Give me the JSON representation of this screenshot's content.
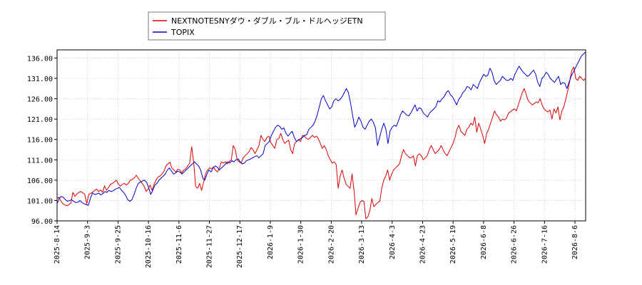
{
  "chart_data": {
    "type": "line",
    "title": "",
    "xlabel": "",
    "ylabel": "",
    "x_ticks": [
      "2025-8-14",
      "2025-9-3",
      "2025-9-25",
      "2025-10-16",
      "2025-11-6",
      "2025-11-27",
      "2025-12-17",
      "2026-1-9",
      "2026-1-30",
      "2026-2-20",
      "2026-3-13",
      "2026-4-3",
      "2026-4-23",
      "2026-5-19",
      "2026-6-8",
      "2026-6-26",
      "2026-7-16",
      "2026-8-6"
    ],
    "y_ticks": [
      "96.00",
      "101.00",
      "106.00",
      "111.00",
      "116.00",
      "121.00",
      "126.00",
      "131.00",
      "136.00"
    ],
    "ylim": [
      96,
      138
    ],
    "grid": true,
    "legend_position": "top-left",
    "series": [
      {
        "name": "NEXTNOTESNYダウ・ダブル・ブル・ドルヘッジETN",
        "color": "#dd0000",
        "values": [
          101.5,
          101.8,
          100.8,
          100.2,
          99.9,
          99.7,
          100.0,
          100.4,
          103.0,
          102.0,
          102.6,
          103.0,
          103.2,
          102.9,
          102.5,
          100.2,
          102.5,
          102.8,
          103.0,
          103.5,
          103.8,
          103.2,
          103.6,
          103.0,
          104.6,
          103.5,
          104.2,
          105.0,
          105.2,
          105.6,
          106.0,
          105.0,
          104.5,
          105.0,
          105.2,
          104.8,
          105.2,
          106.0,
          106.2,
          106.5,
          107.2,
          106.5,
          105.8,
          105.2,
          104.5,
          103.2,
          103.8,
          104.8,
          103.5,
          105.0,
          106.0,
          106.8,
          107.0,
          107.5,
          108.2,
          109.5,
          110.0,
          110.4,
          109.0,
          108.5,
          108.0,
          108.7,
          108.5,
          107.8,
          108.5,
          108.8,
          109.5,
          110.2,
          114.2,
          110.5,
          104.5,
          104.0,
          105.2,
          103.5,
          105.5,
          107.5,
          108.5,
          109.0,
          108.8,
          109.2,
          108.5,
          108.0,
          109.0,
          110.5,
          110.2,
          110.5,
          110.0,
          110.6,
          111.0,
          114.5,
          113.5,
          111.0,
          110.5,
          110.2,
          111.5,
          112.0,
          112.5,
          113.0,
          114.0,
          113.5,
          112.5,
          113.5,
          114.5,
          117.0,
          116.0,
          115.5,
          116.5,
          116.8,
          115.2,
          114.5,
          113.8,
          116.0,
          116.2,
          117.5,
          116.0,
          115.0,
          115.5,
          115.8,
          113.5,
          112.5,
          115.0,
          115.5,
          116.0,
          115.5,
          117.0,
          116.8,
          116.2,
          116.0,
          116.5,
          117.0,
          116.5,
          116.8,
          116.2,
          115.0,
          113.8,
          114.5,
          113.5,
          112.0,
          111.0,
          110.2,
          110.5,
          109.8,
          104.0,
          107.0,
          108.5,
          106.5,
          105.0,
          104.5,
          104.0,
          107.5,
          103.5,
          97.5,
          99.0,
          100.5,
          101.0,
          100.8,
          96.5,
          97.0,
          98.5,
          101.5,
          99.5,
          100.0,
          100.5,
          100.8,
          104.0,
          106.0,
          107.0,
          108.5,
          106.0,
          107.5,
          108.5,
          109.0,
          109.5,
          110.0,
          112.0,
          113.5,
          112.5,
          112.0,
          111.5,
          111.5,
          112.0,
          109.5,
          112.0,
          112.5,
          112.0,
          111.0,
          111.5,
          112.0,
          113.5,
          114.5,
          113.5,
          112.5,
          113.0,
          113.5,
          114.5,
          113.5,
          112.5,
          112.0,
          113.0,
          114.0,
          115.0,
          116.5,
          118.5,
          119.5,
          118.0,
          117.5,
          117.0,
          118.5,
          119.0,
          120.0,
          119.5,
          121.5,
          117.8,
          120.0,
          118.5,
          117.0,
          115.0,
          117.5,
          118.5,
          120.0,
          121.5,
          123.0,
          122.0,
          121.5,
          120.5,
          121.0,
          120.8,
          121.2,
          122.5,
          122.8,
          123.2,
          123.5,
          123.0,
          124.5,
          126.0,
          127.5,
          128.5,
          127.0,
          125.5,
          125.0,
          124.5,
          124.8,
          125.2,
          125.0,
          126.0,
          124.5,
          123.5,
          123.0,
          122.8,
          123.2,
          121.0,
          123.5,
          122.5,
          124.0,
          120.8,
          123.0,
          124.0,
          126.0,
          128.0,
          130.5,
          133.0,
          133.8,
          131.0,
          130.5,
          131.5,
          131.0,
          130.5,
          131.0
        ]
      },
      {
        "name": "TOPIX",
        "color": "#0000cc",
        "values": [
          100.2,
          101.5,
          102.0,
          101.8,
          101.2,
          100.8,
          101.0,
          101.2,
          100.8,
          100.5,
          100.6,
          101.0,
          100.5,
          100.2,
          100.0,
          99.8,
          101.5,
          102.8,
          102.5,
          102.6,
          102.8,
          102.4,
          102.7,
          103.2,
          103.0,
          103.5,
          103.2,
          103.4,
          103.8,
          104.0,
          104.2,
          103.5,
          103.0,
          102.2,
          101.2,
          100.8,
          101.2,
          102.5,
          104.0,
          105.2,
          105.5,
          105.8,
          106.0,
          105.5,
          104.2,
          102.5,
          103.5,
          104.8,
          105.2,
          106.0,
          106.5,
          107.0,
          107.5,
          108.5,
          109.0,
          108.2,
          107.5,
          107.8,
          108.2,
          108.0,
          107.5,
          108.0,
          108.5,
          109.0,
          109.5,
          110.0,
          110.5,
          110.0,
          109.5,
          108.5,
          106.5,
          106.0,
          107.5,
          108.5,
          108.0,
          109.0,
          109.5,
          109.2,
          108.5,
          109.0,
          109.5,
          110.0,
          110.5,
          110.2,
          110.8,
          110.5,
          111.0,
          111.2,
          110.5,
          110.0,
          110.2,
          110.8,
          111.0,
          111.2,
          111.5,
          111.8,
          112.0,
          111.5,
          112.0,
          112.5,
          114.5,
          115.0,
          115.5,
          117.0,
          118.0,
          119.0,
          119.5,
          119.2,
          118.5,
          118.8,
          117.5,
          116.8,
          117.5,
          118.0,
          116.5,
          115.5,
          115.8,
          116.2,
          116.5,
          117.0,
          117.2,
          118.5,
          119.0,
          119.5,
          120.5,
          122.0,
          124.0,
          126.0,
          126.8,
          125.5,
          124.5,
          123.5,
          124.0,
          125.5,
          126.0,
          125.5,
          125.8,
          126.5,
          127.5,
          128.5,
          127.5,
          125.0,
          122.0,
          119.0,
          120.0,
          121.5,
          120.5,
          119.0,
          118.5,
          119.5,
          120.5,
          121.0,
          120.2,
          118.8,
          114.5,
          116.5,
          118.5,
          120.0,
          118.5,
          115.0,
          118.0,
          119.0,
          119.5,
          119.2,
          120.5,
          122.0,
          123.0,
          122.5,
          122.0,
          121.8,
          122.5,
          123.5,
          124.5,
          123.0,
          123.8,
          123.5,
          122.5,
          122.0,
          121.5,
          122.5,
          123.0,
          123.5,
          124.0,
          125.5,
          125.2,
          126.0,
          126.5,
          127.5,
          128.0,
          127.0,
          126.5,
          125.5,
          124.5,
          125.8,
          126.5,
          127.5,
          128.0,
          129.0,
          128.8,
          128.2,
          129.5,
          129.0,
          128.5,
          130.0,
          131.0,
          132.0,
          131.5,
          131.8,
          133.5,
          132.5,
          130.5,
          129.5,
          130.0,
          130.5,
          131.5,
          131.0,
          130.5,
          130.5,
          131.0,
          130.5,
          132.0,
          133.0,
          134.0,
          133.2,
          132.5,
          132.0,
          131.5,
          131.8,
          132.5,
          133.0,
          132.0,
          130.0,
          129.0,
          131.0,
          131.5,
          132.5,
          132.0,
          131.0,
          130.5,
          130.0,
          130.8,
          131.5,
          129.5,
          130.0,
          129.8,
          128.5,
          130.0,
          131.5,
          132.5,
          133.5,
          134.5,
          135.5,
          136.5,
          137.0,
          137.5
        ]
      }
    ]
  }
}
